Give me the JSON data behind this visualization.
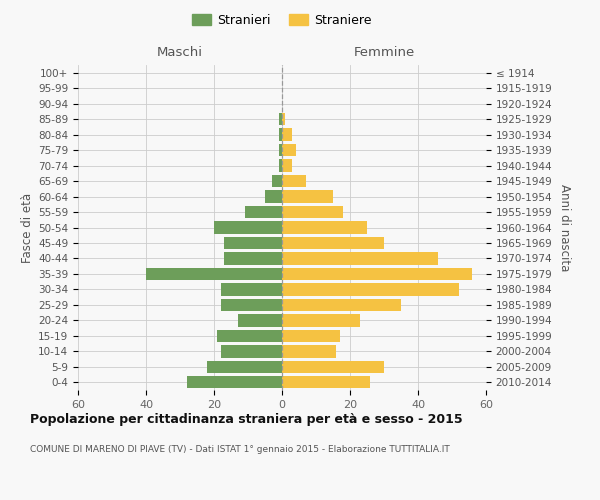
{
  "age_groups": [
    "0-4",
    "5-9",
    "10-14",
    "15-19",
    "20-24",
    "25-29",
    "30-34",
    "35-39",
    "40-44",
    "45-49",
    "50-54",
    "55-59",
    "60-64",
    "65-69",
    "70-74",
    "75-79",
    "80-84",
    "85-89",
    "90-94",
    "95-99",
    "100+"
  ],
  "birth_years": [
    "2010-2014",
    "2005-2009",
    "2000-2004",
    "1995-1999",
    "1990-1994",
    "1985-1989",
    "1980-1984",
    "1975-1979",
    "1970-1974",
    "1965-1969",
    "1960-1964",
    "1955-1959",
    "1950-1954",
    "1945-1949",
    "1940-1944",
    "1935-1939",
    "1930-1934",
    "1925-1929",
    "1920-1924",
    "1915-1919",
    "≤ 1914"
  ],
  "maschi": [
    28,
    22,
    18,
    19,
    13,
    18,
    18,
    40,
    17,
    17,
    20,
    11,
    5,
    3,
    1,
    1,
    1,
    1,
    0,
    0,
    0
  ],
  "femmine": [
    26,
    30,
    16,
    17,
    23,
    35,
    52,
    56,
    46,
    30,
    25,
    18,
    15,
    7,
    3,
    4,
    3,
    1,
    0,
    0,
    0
  ],
  "maschi_color": "#6d9e5a",
  "femmine_color": "#f5c242",
  "background_color": "#f8f8f8",
  "grid_color": "#cccccc",
  "title": "Popolazione per cittadinanza straniera per età e sesso - 2015",
  "subtitle": "COMUNE DI MARENO DI PIAVE (TV) - Dati ISTAT 1° gennaio 2015 - Elaborazione TUTTITALIA.IT",
  "label_maschi_col": "Maschi",
  "label_femmine_col": "Femmine",
  "ylabel_left": "Fasce di età",
  "ylabel_right": "Anni di nascita",
  "xlim": 60,
  "legend_maschi": "Stranieri",
  "legend_femmine": "Straniere"
}
